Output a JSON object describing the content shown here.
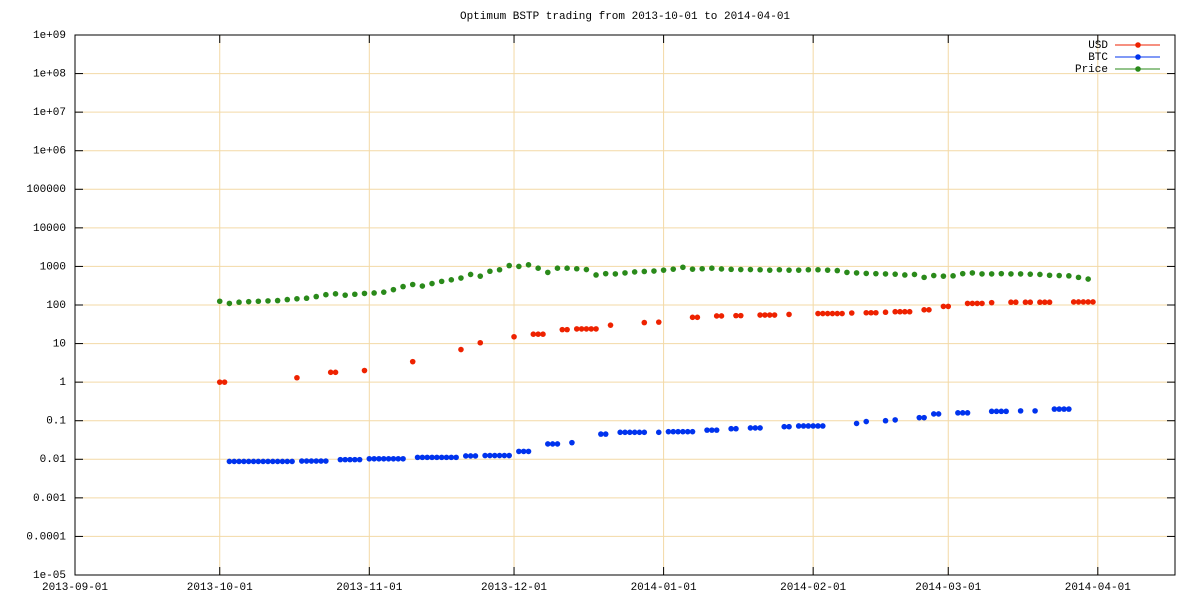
{
  "chart_data": {
    "type": "scatter",
    "title": "Optimum BSTP trading from 2013-10-01 to 2014-04-01",
    "log_y": true,
    "grid": true,
    "legend": "top-right",
    "xlim": [
      "2013-09-01",
      "2014-04-17"
    ],
    "xticks": [
      "2013-09-01",
      "2013-10-01",
      "2013-11-01",
      "2013-12-01",
      "2014-01-01",
      "2014-02-01",
      "2014-03-01",
      "2014-04-01"
    ],
    "ylim": [
      1e-05,
      1000000000
    ],
    "yticks": [
      {
        "value": 1000000000,
        "label": "1e+09"
      },
      {
        "value": 100000000,
        "label": "1e+08"
      },
      {
        "value": 10000000,
        "label": "1e+07"
      },
      {
        "value": 1000000,
        "label": "1e+06"
      },
      100000,
      10000,
      1000,
      100,
      10,
      1,
      0.1,
      0.01,
      0.001,
      0.0001,
      {
        "value": 1e-05,
        "label": "1e-05"
      }
    ],
    "series": [
      {
        "name": "USD",
        "color": "#ee2200",
        "x": [
          "2013-10-01",
          "2013-10-02",
          "2013-10-17",
          "2013-10-24",
          "2013-10-25",
          "2013-10-31",
          "2013-11-10",
          "2013-11-20",
          "2013-11-24",
          "2013-12-01",
          "2013-12-05",
          "2013-12-06",
          "2013-12-07",
          "2013-12-11",
          "2013-12-12",
          "2013-12-14",
          "2013-12-15",
          "2013-12-16",
          "2013-12-17",
          "2013-12-18",
          "2013-12-21",
          "2013-12-28",
          "2013-12-31",
          "2014-01-07",
          "2014-01-08",
          "2014-01-12",
          "2014-01-13",
          "2014-01-16",
          "2014-01-17",
          "2014-01-21",
          "2014-01-22",
          "2014-01-23",
          "2014-01-24",
          "2014-01-27",
          "2014-02-02",
          "2014-02-03",
          "2014-02-04",
          "2014-02-05",
          "2014-02-06",
          "2014-02-07",
          "2014-02-09",
          "2014-02-12",
          "2014-02-13",
          "2014-02-14",
          "2014-02-16",
          "2014-02-18",
          "2014-02-19",
          "2014-02-20",
          "2014-02-21",
          "2014-02-24",
          "2014-02-25",
          "2014-02-28",
          "2014-03-01",
          "2014-03-05",
          "2014-03-06",
          "2014-03-07",
          "2014-03-08",
          "2014-03-10",
          "2014-03-14",
          "2014-03-15",
          "2014-03-17",
          "2014-03-18",
          "2014-03-20",
          "2014-03-21",
          "2014-03-22",
          "2014-03-27",
          "2014-03-28",
          "2014-03-29",
          "2014-03-30",
          "2014-03-31"
        ],
        "values": [
          1,
          1,
          1.3,
          1.8,
          1.8,
          2,
          3.4,
          7,
          10.5,
          15,
          17.5,
          17.5,
          17.5,
          23,
          23,
          24,
          24,
          24,
          24,
          24,
          30,
          35,
          36,
          48,
          48,
          52,
          52,
          53,
          53,
          55,
          55,
          55,
          55,
          57,
          60,
          60,
          60,
          60,
          60,
          60,
          62,
          63,
          63,
          63,
          65,
          67,
          67,
          67,
          67,
          75,
          75,
          92,
          92,
          110,
          110,
          110,
          110,
          115,
          118,
          118,
          118,
          118,
          118,
          118,
          118,
          120,
          120,
          120,
          120,
          120
        ]
      },
      {
        "name": "BTC",
        "color": "#0033ee",
        "x": [
          "2013-10-03",
          "2013-10-04",
          "2013-10-05",
          "2013-10-06",
          "2013-10-07",
          "2013-10-08",
          "2013-10-09",
          "2013-10-10",
          "2013-10-11",
          "2013-10-12",
          "2013-10-13",
          "2013-10-14",
          "2013-10-15",
          "2013-10-16",
          "2013-10-18",
          "2013-10-19",
          "2013-10-20",
          "2013-10-21",
          "2013-10-22",
          "2013-10-23",
          "2013-10-26",
          "2013-10-27",
          "2013-10-28",
          "2013-10-29",
          "2013-10-30",
          "2013-11-01",
          "2013-11-02",
          "2013-11-03",
          "2013-11-04",
          "2013-11-05",
          "2013-11-06",
          "2013-11-07",
          "2013-11-08",
          "2013-11-11",
          "2013-11-12",
          "2013-11-13",
          "2013-11-14",
          "2013-11-15",
          "2013-11-16",
          "2013-11-17",
          "2013-11-18",
          "2013-11-19",
          "2013-11-21",
          "2013-11-22",
          "2013-11-23",
          "2013-11-25",
          "2013-11-26",
          "2013-11-27",
          "2013-11-28",
          "2013-11-29",
          "2013-11-30",
          "2013-12-02",
          "2013-12-03",
          "2013-12-04",
          "2013-12-08",
          "2013-12-09",
          "2013-12-10",
          "2013-12-13",
          "2013-12-19",
          "2013-12-20",
          "2013-12-23",
          "2013-12-24",
          "2013-12-25",
          "2013-12-26",
          "2013-12-27",
          "2013-12-28",
          "2013-12-31",
          "2014-01-02",
          "2014-01-03",
          "2014-01-04",
          "2014-01-05",
          "2014-01-06",
          "2014-01-07",
          "2014-01-10",
          "2014-01-11",
          "2014-01-12",
          "2014-01-15",
          "2014-01-16",
          "2014-01-19",
          "2014-01-20",
          "2014-01-21",
          "2014-01-26",
          "2014-01-27",
          "2014-01-29",
          "2014-01-30",
          "2014-01-31",
          "2014-02-01",
          "2014-02-02",
          "2014-02-03",
          "2014-02-10",
          "2014-02-12",
          "2014-02-16",
          "2014-02-18",
          "2014-02-23",
          "2014-02-24",
          "2014-02-26",
          "2014-02-27",
          "2014-03-03",
          "2014-03-04",
          "2014-03-05",
          "2014-03-10",
          "2014-03-11",
          "2014-03-12",
          "2014-03-13",
          "2014-03-16",
          "2014-03-19",
          "2014-03-23",
          "2014-03-24",
          "2014-03-25",
          "2014-03-26"
        ],
        "values": [
          0.0088,
          0.0088,
          0.0088,
          0.0088,
          0.0088,
          0.0088,
          0.0088,
          0.0088,
          0.0088,
          0.0088,
          0.0088,
          0.0088,
          0.0088,
          0.0088,
          0.009,
          0.009,
          0.009,
          0.009,
          0.009,
          0.009,
          0.0098,
          0.0098,
          0.0098,
          0.0098,
          0.0098,
          0.0103,
          0.0103,
          0.0103,
          0.0103,
          0.0103,
          0.0103,
          0.0103,
          0.0103,
          0.0112,
          0.0112,
          0.0112,
          0.0112,
          0.0112,
          0.0112,
          0.0112,
          0.0112,
          0.0112,
          0.0122,
          0.0122,
          0.0122,
          0.0125,
          0.0125,
          0.0125,
          0.0125,
          0.0125,
          0.0125,
          0.016,
          0.016,
          0.016,
          0.025,
          0.025,
          0.025,
          0.027,
          0.045,
          0.045,
          0.05,
          0.05,
          0.05,
          0.05,
          0.05,
          0.05,
          0.05,
          0.052,
          0.052,
          0.052,
          0.052,
          0.052,
          0.052,
          0.057,
          0.057,
          0.057,
          0.062,
          0.062,
          0.065,
          0.065,
          0.065,
          0.07,
          0.07,
          0.073,
          0.073,
          0.073,
          0.073,
          0.073,
          0.073,
          0.085,
          0.095,
          0.1,
          0.105,
          0.12,
          0.12,
          0.15,
          0.15,
          0.16,
          0.16,
          0.16,
          0.175,
          0.175,
          0.175,
          0.175,
          0.18,
          0.18,
          0.2,
          0.2,
          0.2,
          0.2
        ]
      },
      {
        "name": "Price",
        "color": "#2a8a1a",
        "x": [
          "2013-10-01",
          "2013-10-03",
          "2013-10-05",
          "2013-10-07",
          "2013-10-09",
          "2013-10-11",
          "2013-10-13",
          "2013-10-15",
          "2013-10-17",
          "2013-10-19",
          "2013-10-21",
          "2013-10-23",
          "2013-10-25",
          "2013-10-27",
          "2013-10-29",
          "2013-10-31",
          "2013-11-02",
          "2013-11-04",
          "2013-11-06",
          "2013-11-08",
          "2013-11-10",
          "2013-11-12",
          "2013-11-14",
          "2013-11-16",
          "2013-11-18",
          "2013-11-20",
          "2013-11-22",
          "2013-11-24",
          "2013-11-26",
          "2013-11-28",
          "2013-11-30",
          "2013-12-02",
          "2013-12-04",
          "2013-12-06",
          "2013-12-08",
          "2013-12-10",
          "2013-12-12",
          "2013-12-14",
          "2013-12-16",
          "2013-12-18",
          "2013-12-20",
          "2013-12-22",
          "2013-12-24",
          "2013-12-26",
          "2013-12-28",
          "2013-12-30",
          "2014-01-01",
          "2014-01-03",
          "2014-01-05",
          "2014-01-07",
          "2014-01-09",
          "2014-01-11",
          "2014-01-13",
          "2014-01-15",
          "2014-01-17",
          "2014-01-19",
          "2014-01-21",
          "2014-01-23",
          "2014-01-25",
          "2014-01-27",
          "2014-01-29",
          "2014-01-31",
          "2014-02-02",
          "2014-02-04",
          "2014-02-06",
          "2014-02-08",
          "2014-02-10",
          "2014-02-12",
          "2014-02-14",
          "2014-02-16",
          "2014-02-18",
          "2014-02-20",
          "2014-02-22",
          "2014-02-24",
          "2014-02-26",
          "2014-02-28",
          "2014-03-02",
          "2014-03-04",
          "2014-03-06",
          "2014-03-08",
          "2014-03-10",
          "2014-03-12",
          "2014-03-14",
          "2014-03-16",
          "2014-03-18",
          "2014-03-20",
          "2014-03-22",
          "2014-03-24",
          "2014-03-26",
          "2014-03-28",
          "2014-03-30"
        ],
        "values": [
          125,
          110,
          118,
          122,
          125,
          128,
          130,
          138,
          145,
          150,
          165,
          185,
          195,
          180,
          190,
          200,
          205,
          215,
          250,
          300,
          340,
          310,
          360,
          410,
          450,
          500,
          620,
          560,
          750,
          820,
          1050,
          1000,
          1100,
          900,
          700,
          900,
          900,
          870,
          830,
          600,
          650,
          640,
          680,
          720,
          740,
          760,
          800,
          850,
          950,
          850,
          870,
          900,
          860,
          840,
          830,
          830,
          820,
          800,
          820,
          800,
          800,
          820,
          820,
          800,
          780,
          700,
          680,
          660,
          650,
          640,
          630,
          600,
          620,
          520,
          580,
          560,
          570,
          650,
          680,
          640,
          640,
          650,
          640,
          640,
          630,
          620,
          590,
          580,
          570,
          520,
          470
        ]
      }
    ]
  }
}
